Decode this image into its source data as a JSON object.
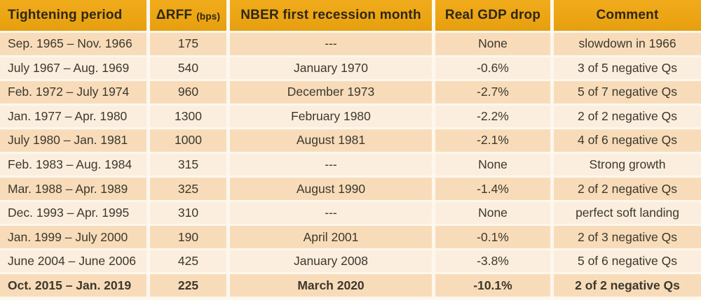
{
  "chart_data": {
    "type": "table",
    "columns": [
      {
        "key": "period",
        "label": "Tightening period",
        "suffix": "",
        "align": "left"
      },
      {
        "key": "drff",
        "label": "ΔRFF",
        "suffix": "(bps)",
        "align": "center"
      },
      {
        "key": "nber",
        "label": "NBER first recession month",
        "suffix": "",
        "align": "center"
      },
      {
        "key": "gdp",
        "label": "Real GDP drop",
        "suffix": "",
        "align": "center"
      },
      {
        "key": "comment",
        "label": "Comment",
        "suffix": "",
        "align": "center"
      }
    ],
    "rows": [
      {
        "cells": [
          "Sep. 1965 – Nov. 1966",
          "175",
          "---",
          "None",
          "slowdown in 1966"
        ],
        "bold": false
      },
      {
        "cells": [
          "July 1967 – Aug. 1969",
          "540",
          "January 1970",
          "-0.6%",
          "3 of 5 negative Qs"
        ],
        "bold": false
      },
      {
        "cells": [
          "Feb. 1972 – July 1974",
          "960",
          "December 1973",
          "-2.7%",
          "5 of 7 negative Qs"
        ],
        "bold": false
      },
      {
        "cells": [
          "Jan. 1977 – Apr. 1980",
          "1300",
          "February 1980",
          "-2.2%",
          "2 of 2 negative Qs"
        ],
        "bold": false
      },
      {
        "cells": [
          "July 1980 – Jan. 1981",
          "1000",
          "August 1981",
          "-2.1%",
          "4 of 6 negative Qs"
        ],
        "bold": false
      },
      {
        "cells": [
          "Feb. 1983 – Aug. 1984",
          "315",
          "---",
          "None",
          "Strong growth"
        ],
        "bold": false
      },
      {
        "cells": [
          "Mar. 1988 – Apr. 1989",
          "325",
          "August 1990",
          "-1.4%",
          "2 of 2 negative Qs"
        ],
        "bold": false
      },
      {
        "cells": [
          "Dec. 1993 – Apr. 1995",
          "310",
          "---",
          "None",
          "perfect soft landing"
        ],
        "bold": false
      },
      {
        "cells": [
          "Jan. 1999 – July 2000",
          "190",
          "April 2001",
          "-0.1%",
          "2 of 3 negative Qs"
        ],
        "bold": false
      },
      {
        "cells": [
          "June 2004 – June 2006",
          "425",
          "January 2008",
          "-3.8%",
          "5 of 6 negative Qs"
        ],
        "bold": false
      },
      {
        "cells": [
          "Oct. 2015 – Jan. 2019",
          "225",
          "March 2020",
          "-10.1%",
          "2 of 2 negative Qs"
        ],
        "bold": true
      }
    ]
  },
  "colors": {
    "header_bg": "#eca513",
    "header_text": "#2f2713",
    "row_dark": "#f8dcba",
    "row_light": "#fceede",
    "gap_bg": "#fdf7ec",
    "body_text": "#3c382d"
  }
}
